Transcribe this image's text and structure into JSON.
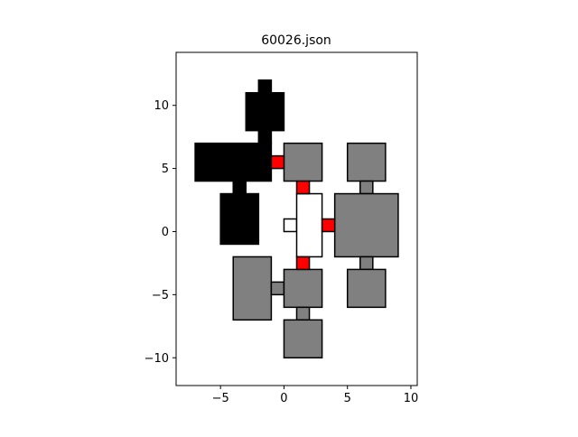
{
  "chart_data": {
    "type": "floorplan",
    "title": "60026.json",
    "xlabel": "",
    "ylabel": "",
    "xlim": [
      -8.5,
      10.5
    ],
    "ylim": [
      -12.2,
      14.2
    ],
    "xticks": [
      -5,
      0,
      5,
      10
    ],
    "xtick_labels": [
      "−5",
      "0",
      "5",
      "10"
    ],
    "yticks": [
      -10,
      -5,
      0,
      5,
      10
    ],
    "ytick_labels": [
      "−10",
      "−5",
      "0",
      "5",
      "10"
    ],
    "grid": false,
    "colors": {
      "black": "#000000",
      "gray": "#808080",
      "white": "#ffffff",
      "red": "#ff0000",
      "edge": "#000000"
    },
    "rooms": [
      {
        "name": "room-black-top",
        "color": "black",
        "x": [
          -3,
          0
        ],
        "y": [
          8,
          11
        ]
      },
      {
        "name": "room-black-top-nub",
        "color": "black",
        "x": [
          -2,
          -1
        ],
        "y": [
          11,
          12
        ]
      },
      {
        "name": "room-black-neck",
        "color": "black",
        "x": [
          -2,
          -1
        ],
        "y": [
          7,
          8
        ]
      },
      {
        "name": "room-black-wide",
        "color": "black",
        "x": [
          -7,
          -1
        ],
        "y": [
          4,
          7
        ]
      },
      {
        "name": "room-black-link",
        "color": "black",
        "x": [
          -4,
          -3
        ],
        "y": [
          3,
          4
        ]
      },
      {
        "name": "room-black-low",
        "color": "black",
        "x": [
          -5,
          -2
        ],
        "y": [
          -1,
          3
        ]
      },
      {
        "name": "room-gray-upper-mid",
        "color": "gray",
        "x": [
          0,
          3
        ],
        "y": [
          4,
          7
        ]
      },
      {
        "name": "room-gray-upper-right",
        "color": "gray",
        "x": [
          5,
          8
        ],
        "y": [
          4,
          7
        ]
      },
      {
        "name": "room-gray-right-link-top",
        "color": "gray",
        "x": [
          6,
          7
        ],
        "y": [
          3,
          4
        ]
      },
      {
        "name": "room-gray-right-big",
        "color": "gray",
        "x": [
          4,
          9
        ],
        "y": [
          -2,
          3
        ]
      },
      {
        "name": "room-gray-right-link-bottom",
        "color": "gray",
        "x": [
          6,
          7
        ],
        "y": [
          -3,
          -2
        ]
      },
      {
        "name": "room-gray-lower-right",
        "color": "gray",
        "x": [
          5,
          8
        ],
        "y": [
          -6,
          -3
        ]
      },
      {
        "name": "room-gray-lower-left",
        "color": "gray",
        "x": [
          -4,
          -1
        ],
        "y": [
          -7,
          -2
        ]
      },
      {
        "name": "room-gray-lower-link",
        "color": "gray",
        "x": [
          -1,
          0
        ],
        "y": [
          -5,
          -4
        ]
      },
      {
        "name": "room-gray-lower-mid",
        "color": "gray",
        "x": [
          0,
          3
        ],
        "y": [
          -6,
          -3
        ]
      },
      {
        "name": "room-gray-bottom-link",
        "color": "gray",
        "x": [
          1,
          2
        ],
        "y": [
          -7,
          -6
        ]
      },
      {
        "name": "room-gray-bottom",
        "color": "gray",
        "x": [
          0,
          3
        ],
        "y": [
          -10,
          -7
        ]
      },
      {
        "name": "room-white-nub",
        "color": "white",
        "x": [
          0,
          1
        ],
        "y": [
          0,
          1
        ]
      },
      {
        "name": "room-white-hall",
        "color": "white",
        "x": [
          1,
          3
        ],
        "y": [
          -2,
          3
        ]
      },
      {
        "name": "door-red-left",
        "color": "red",
        "x": [
          -1,
          0
        ],
        "y": [
          5,
          6
        ]
      },
      {
        "name": "door-red-top",
        "color": "red",
        "x": [
          1,
          2
        ],
        "y": [
          3,
          4
        ]
      },
      {
        "name": "door-red-right",
        "color": "red",
        "x": [
          3,
          4
        ],
        "y": [
          0,
          1
        ]
      },
      {
        "name": "door-red-bottom",
        "color": "red",
        "x": [
          1,
          2
        ],
        "y": [
          -3,
          -2
        ]
      }
    ]
  }
}
